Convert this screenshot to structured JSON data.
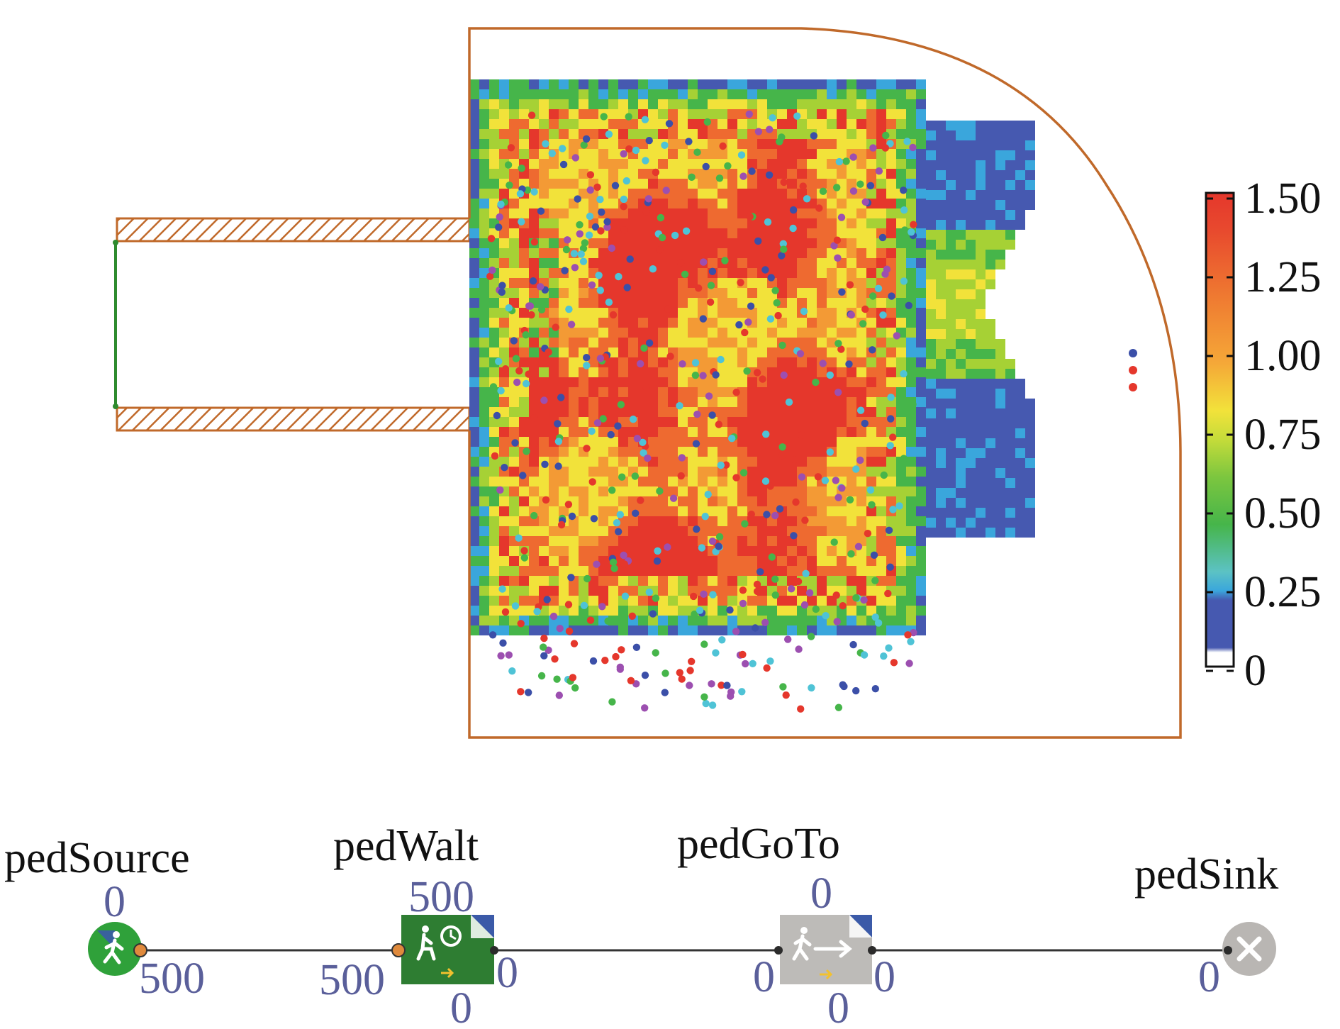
{
  "colors": {
    "wall": "#c0692a",
    "link": "#333333",
    "source_green": "#2fa13a",
    "wait_green": "#2e7d32",
    "goto_gray": "#bdbbb8",
    "sink_gray": "#b9b6b3",
    "count_text": "#5a5f9a",
    "port_orange": "#e08a3c",
    "port_dark": "#2b2b2b",
    "density_scale": [
      "#ffffff",
      "#4659b0",
      "#3aa6dc",
      "#46b54a",
      "#a6d135",
      "#f2e23a",
      "#f39a35",
      "#ee6a30",
      "#e5372c"
    ]
  },
  "heatmap": {
    "legend": {
      "ticks": [
        "1.50",
        "1.25",
        "1.00",
        "0.75",
        "0.50",
        "0.25",
        "0"
      ],
      "min": 0,
      "max": 1.5
    }
  },
  "flowchart": {
    "blocks": [
      {
        "id": "source",
        "name": "pedSource",
        "icon": "pedestrian-walking-icon",
        "count_top": "0",
        "count_out": "500"
      },
      {
        "id": "wait",
        "name": "pedWalt",
        "icon": "pedestrian-wait-clock-icon",
        "count_top": "500",
        "count_in": "500",
        "count_out": "0",
        "count_bottom": "0"
      },
      {
        "id": "goto",
        "name": "pedGoTo",
        "icon": "pedestrian-goto-arrow-icon",
        "count_top": "0",
        "count_in": "0",
        "count_out": "0",
        "count_bottom": "0"
      },
      {
        "id": "sink",
        "name": "pedSink",
        "icon": "close-x-icon",
        "count_in": "0"
      }
    ]
  }
}
